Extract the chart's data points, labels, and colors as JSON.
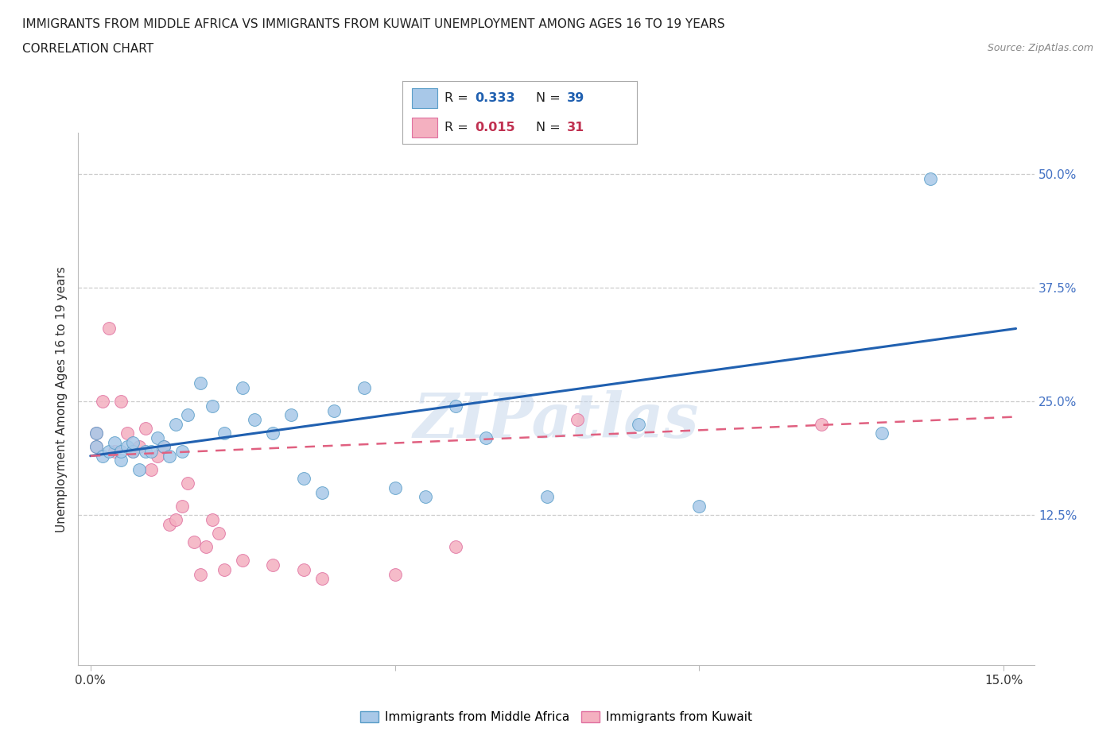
{
  "title_line1": "IMMIGRANTS FROM MIDDLE AFRICA VS IMMIGRANTS FROM KUWAIT UNEMPLOYMENT AMONG AGES 16 TO 19 YEARS",
  "title_line2": "CORRELATION CHART",
  "source_text": "Source: ZipAtlas.com",
  "ylabel": "Unemployment Among Ages 16 to 19 years",
  "xlim": [
    -0.002,
    0.155
  ],
  "ylim": [
    -0.04,
    0.545
  ],
  "blue_R": "0.333",
  "blue_N": "39",
  "pink_R": "0.015",
  "pink_N": "31",
  "blue_color": "#a8c8e8",
  "blue_edge": "#5a9ec8",
  "pink_color": "#f4b0c0",
  "pink_edge": "#e070a0",
  "blue_line_color": "#2060b0",
  "pink_line_color": "#e06080",
  "watermark": "ZIPatlas",
  "blue_x": [
    0.001,
    0.001,
    0.002,
    0.003,
    0.004,
    0.005,
    0.005,
    0.006,
    0.007,
    0.007,
    0.008,
    0.009,
    0.01,
    0.011,
    0.012,
    0.013,
    0.014,
    0.015,
    0.016,
    0.018,
    0.02,
    0.022,
    0.025,
    0.027,
    0.03,
    0.033,
    0.035,
    0.038,
    0.04,
    0.045,
    0.05,
    0.055,
    0.06,
    0.065,
    0.075,
    0.09,
    0.1,
    0.13,
    0.138
  ],
  "blue_y": [
    0.2,
    0.215,
    0.19,
    0.195,
    0.205,
    0.185,
    0.195,
    0.2,
    0.195,
    0.205,
    0.175,
    0.195,
    0.195,
    0.21,
    0.2,
    0.19,
    0.225,
    0.195,
    0.235,
    0.27,
    0.245,
    0.215,
    0.265,
    0.23,
    0.215,
    0.235,
    0.165,
    0.15,
    0.24,
    0.265,
    0.155,
    0.145,
    0.245,
    0.21,
    0.145,
    0.225,
    0.135,
    0.215,
    0.495
  ],
  "pink_x": [
    0.001,
    0.001,
    0.002,
    0.003,
    0.004,
    0.005,
    0.006,
    0.007,
    0.008,
    0.009,
    0.01,
    0.011,
    0.012,
    0.013,
    0.014,
    0.015,
    0.016,
    0.017,
    0.018,
    0.019,
    0.02,
    0.021,
    0.022,
    0.025,
    0.03,
    0.035,
    0.038,
    0.05,
    0.06,
    0.08,
    0.12
  ],
  "pink_y": [
    0.2,
    0.215,
    0.25,
    0.33,
    0.195,
    0.25,
    0.215,
    0.195,
    0.2,
    0.22,
    0.175,
    0.19,
    0.2,
    0.115,
    0.12,
    0.135,
    0.16,
    0.095,
    0.06,
    0.09,
    0.12,
    0.105,
    0.065,
    0.075,
    0.07,
    0.065,
    0.055,
    0.06,
    0.09,
    0.23,
    0.225
  ],
  "blue_line_x": [
    0.0,
    0.152
  ],
  "blue_line_y": [
    0.19,
    0.33
  ],
  "pink_line_x": [
    0.0,
    0.152
  ],
  "pink_line_y": [
    0.19,
    0.233
  ]
}
